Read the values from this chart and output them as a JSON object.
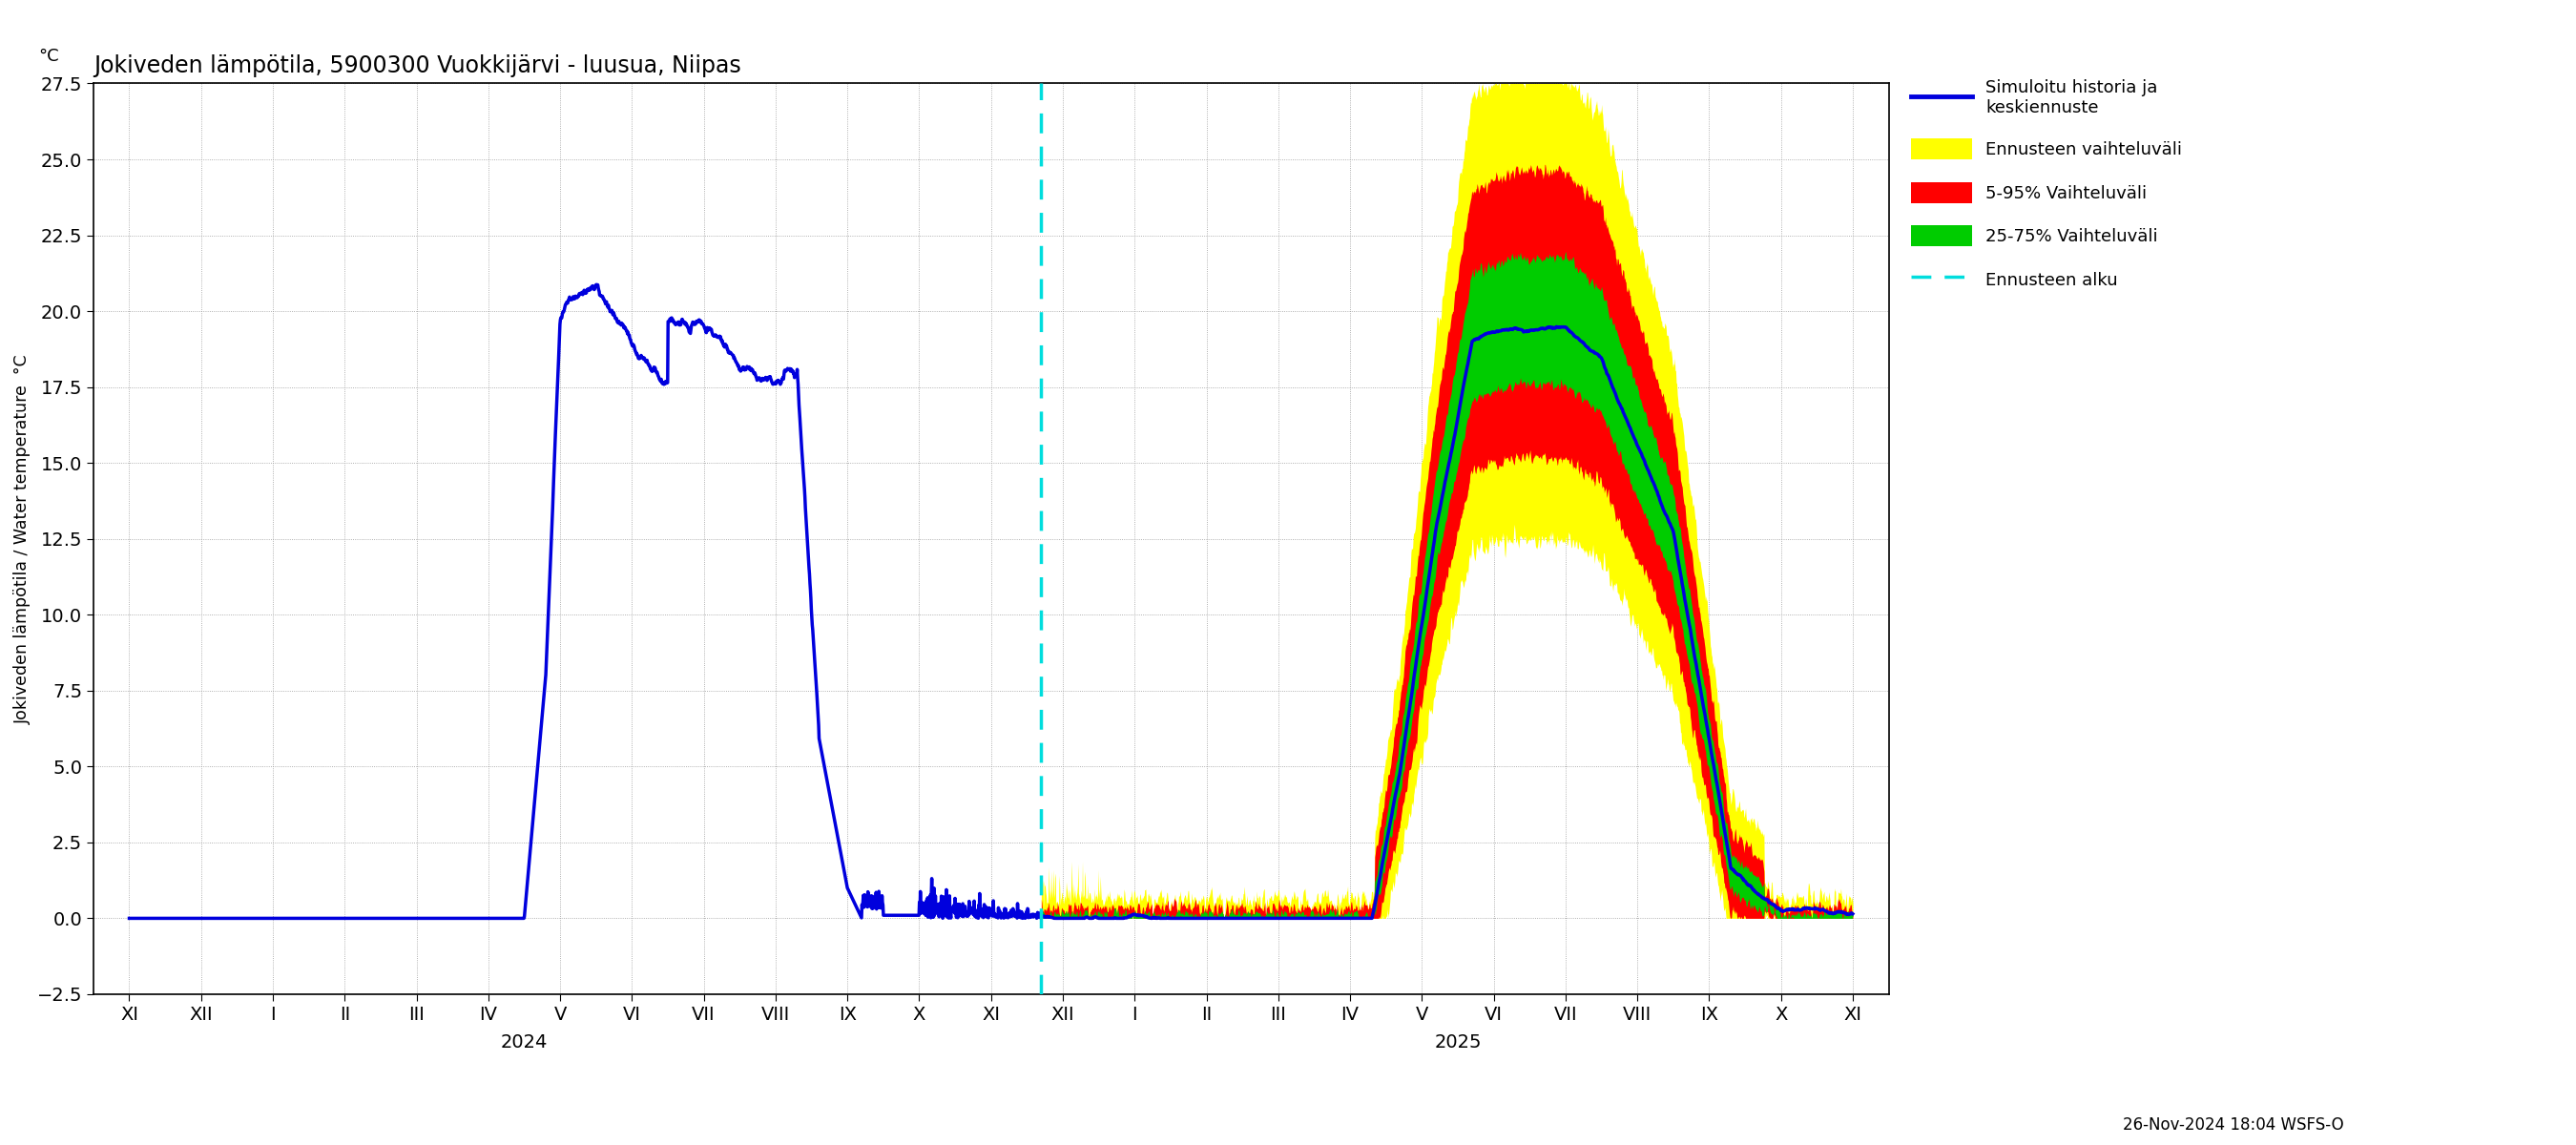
{
  "title": "Jokiveden lämpötila, 5900300 Vuokkijärvi - luusua, Niipas",
  "ylabel": "Jokiveden lämpötila / Water temperature  °C",
  "ylabel_top": "°C",
  "ylim": [
    -2.5,
    27.5
  ],
  "yticks": [
    -2.5,
    0.0,
    2.5,
    5.0,
    7.5,
    10.0,
    12.5,
    15.0,
    17.5,
    20.0,
    22.5,
    25.0,
    27.5
  ],
  "background_color": "#ffffff",
  "grid_color": "#999999",
  "history_color": "#0000dd",
  "forecast_band_yellow": "#ffff00",
  "forecast_band_red": "#ff0000",
  "forecast_band_green": "#00cc00",
  "forecast_line_color": "#0000dd",
  "vline_color": "#00dddd",
  "timestamp": "26-Nov-2024 18:04 WSFS-O",
  "legend_labels": [
    "Simuloitu historia ja\nkeskiennuste",
    "Ennusteen vaihteluväli",
    "5-95% Vaihteluväli",
    "25-75% Vaihteluväli",
    "Ennusteen alku"
  ],
  "x_tick_labels": [
    "XI",
    "XII",
    "I",
    "II",
    "III",
    "IV",
    "V",
    "VI",
    "VII",
    "VIII",
    "IX",
    "X",
    "XI",
    "XII",
    "I",
    "II",
    "III",
    "IV",
    "V",
    "VI",
    "VII",
    "VIII",
    "IX",
    "X",
    "XI"
  ],
  "year_2024_x": 5.5,
  "year_2025_x": 18.5,
  "forecast_vline_x": 12.7,
  "xlim": [
    -0.5,
    24.5
  ]
}
